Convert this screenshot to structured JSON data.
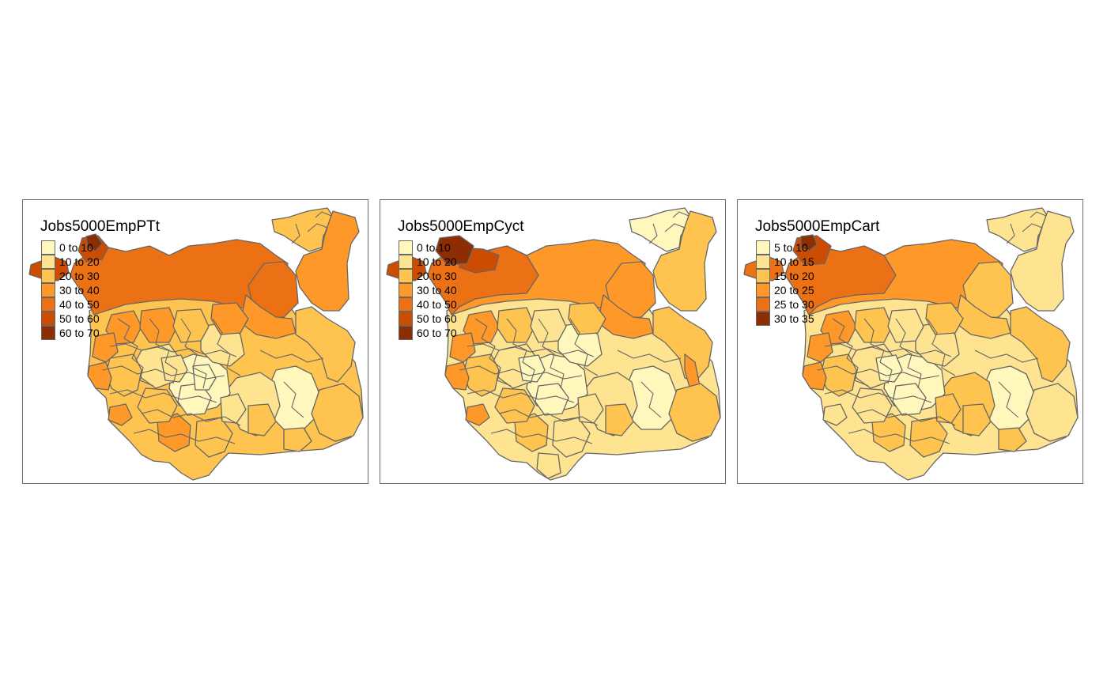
{
  "palette": [
    "#FFF7BC",
    "#FEE391",
    "#FEC44F",
    "#FE9929",
    "#EC7014",
    "#CC4C02",
    "#8C2D04"
  ],
  "border_color": "#666666",
  "maps": [
    {
      "title": "Jobs5000EmpPTt",
      "legend": [
        {
          "label": "0 to 10",
          "color": "#FFF7BC"
        },
        {
          "label": "10 to 20",
          "color": "#FEE391"
        },
        {
          "label": "20 to 30",
          "color": "#FEC44F"
        },
        {
          "label": "30 to 40",
          "color": "#FE9929"
        },
        {
          "label": "40 to 50",
          "color": "#EC7014"
        },
        {
          "label": "50 to 60",
          "color": "#CC4C02"
        },
        {
          "label": "60 to 70",
          "color": "#8C2D04"
        }
      ]
    },
    {
      "title": "Jobs5000EmpCyct",
      "legend": [
        {
          "label": "0 to 10",
          "color": "#FFF7BC"
        },
        {
          "label": "10 to 20",
          "color": "#FEE391"
        },
        {
          "label": "20 to 30",
          "color": "#FEC44F"
        },
        {
          "label": "30 to 40",
          "color": "#FE9929"
        },
        {
          "label": "40 to 50",
          "color": "#EC7014"
        },
        {
          "label": "50 to 60",
          "color": "#CC4C02"
        },
        {
          "label": "60 to 70",
          "color": "#8C2D04"
        }
      ]
    },
    {
      "title": "Jobs5000EmpCart",
      "legend": [
        {
          "label": "5 to 10",
          "color": "#FFF7BC"
        },
        {
          "label": "10 to 15",
          "color": "#FEE391"
        },
        {
          "label": "15 to 20",
          "color": "#FEC44F"
        },
        {
          "label": "20 to 25",
          "color": "#FE9929"
        },
        {
          "label": "25 to 30",
          "color": "#EC7014"
        },
        {
          "label": "30 to 35",
          "color": "#8C2D04"
        }
      ]
    }
  ]
}
